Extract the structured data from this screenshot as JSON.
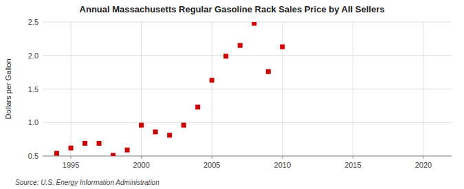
{
  "chart_data": {
    "type": "scatter",
    "title": "Annual Massachusetts Regular Gasoline Rack Sales Price by All Sellers",
    "y_label": "Dollars per Gallon",
    "annotations": [
      "Source: U.S. Energy Information Administration"
    ],
    "x": [
      1994,
      1995,
      1996,
      1997,
      1998,
      1999,
      2000,
      2001,
      2002,
      2003,
      2004,
      2005,
      2006,
      2007,
      2008,
      2009,
      2010
    ],
    "values": [
      0.54,
      0.62,
      0.69,
      0.69,
      0.51,
      0.59,
      0.96,
      0.86,
      0.81,
      0.96,
      1.23,
      1.63,
      1.99,
      2.15,
      2.48,
      1.76,
      2.13
    ],
    "color": "#cc0000",
    "marker": "square",
    "xlim": [
      1993,
      2022
    ],
    "ylim": [
      0.5,
      2.5
    ],
    "xticks": [
      1995,
      2000,
      2005,
      2010,
      2015,
      2020
    ],
    "yticks": [
      0.5,
      {
        "value": 1.0,
        "label": "1.0"
      },
      1.5,
      {
        "value": 2.0,
        "label": "2.0"
      },
      2.5
    ],
    "grid": true
  }
}
